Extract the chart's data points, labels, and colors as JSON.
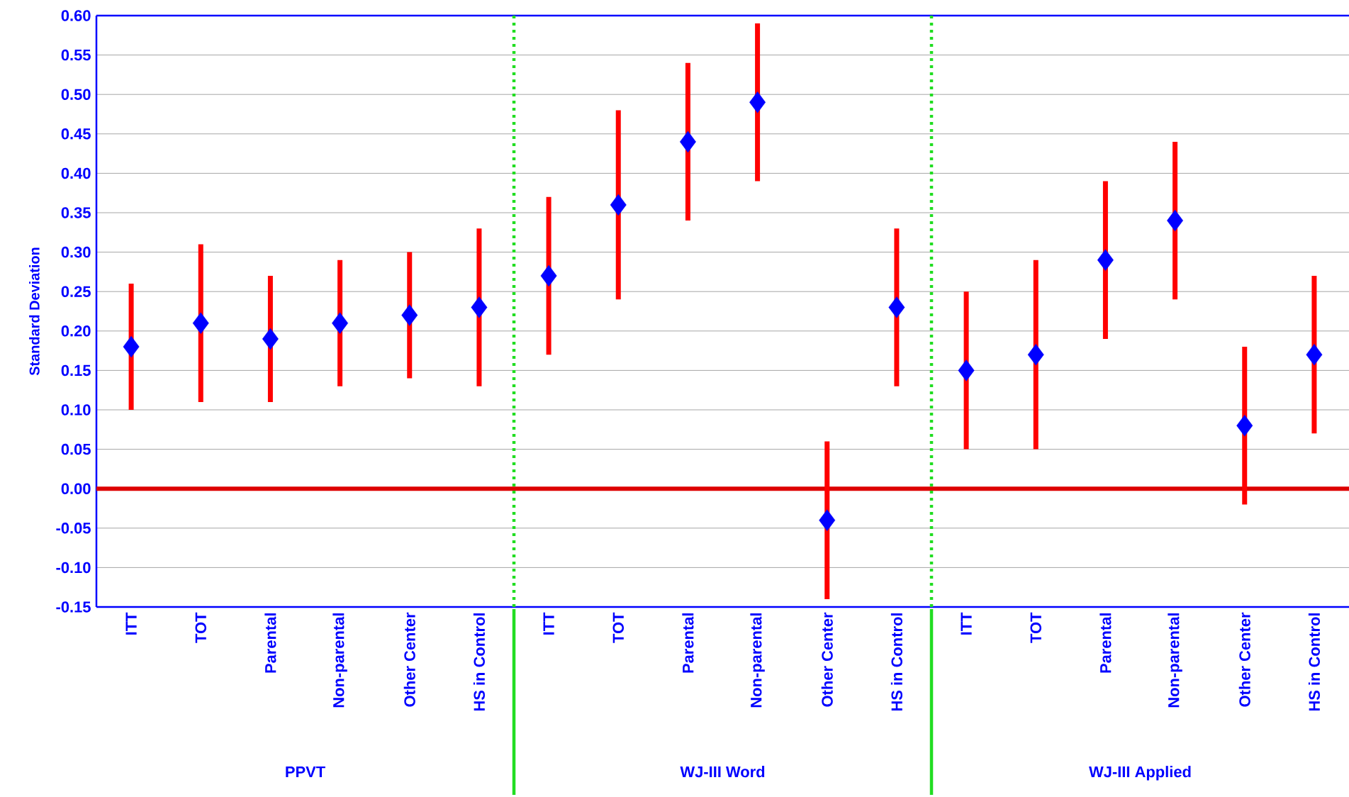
{
  "chart_data": {
    "type": "scatter",
    "ylabel": "Standard Deviation",
    "categories": [
      "ITT",
      "TOT",
      "Parental",
      "Non-parental",
      "Other Center",
      "HS in Control",
      "ITT",
      "TOT",
      "Parental",
      "Non-parental",
      "Other Center",
      "HS in Control",
      "ITT",
      "TOT",
      "Parental",
      "Non-parental",
      "Other Center",
      "HS in Control"
    ],
    "series": [
      {
        "color": "#0000ff",
        "values": [
          0.18,
          0.21,
          0.19,
          0.21,
          0.22,
          0.23,
          0.27,
          0.36,
          0.44,
          0.49,
          -0.04,
          0.23,
          0.15,
          0.17,
          0.29,
          0.34,
          0.08,
          0.17
        ],
        "errors": [
          [
            0.1,
            0.26
          ],
          [
            0.11,
            0.31
          ],
          [
            0.11,
            0.27
          ],
          [
            0.13,
            0.29
          ],
          [
            0.14,
            0.3
          ],
          [
            0.13,
            0.33
          ],
          [
            0.17,
            0.37
          ],
          [
            0.24,
            0.48
          ],
          [
            0.34,
            0.54
          ],
          [
            0.39,
            0.59
          ],
          [
            -0.14,
            0.06
          ],
          [
            0.13,
            0.33
          ],
          [
            0.05,
            0.25
          ],
          [
            0.05,
            0.29
          ],
          [
            0.19,
            0.39
          ],
          [
            0.24,
            0.44
          ],
          [
            -0.02,
            0.18
          ],
          [
            0.07,
            0.27
          ]
        ]
      }
    ],
    "marker": "diamond",
    "ylim": [
      -0.15,
      0.6
    ],
    "yticks": [
      {
        "value": -0.15,
        "label": "-0.15"
      },
      {
        "value": -0.1,
        "label": "-0.10"
      },
      {
        "value": -0.05,
        "label": "-0.05"
      },
      {
        "value": 0,
        "label": "0.00"
      },
      {
        "value": 0.05,
        "label": "0.05"
      },
      {
        "value": 0.1,
        "label": "0.10"
      },
      {
        "value": 0.15,
        "label": "0.15"
      },
      {
        "value": 0.2,
        "label": "0.20"
      },
      {
        "value": 0.25,
        "label": "0.25"
      },
      {
        "value": 0.3,
        "label": "0.30"
      },
      {
        "value": 0.35,
        "label": "0.35"
      },
      {
        "value": 0.4,
        "label": "0.40"
      },
      {
        "value": 0.45,
        "label": "0.45"
      },
      {
        "value": 0.5,
        "label": "0.50"
      },
      {
        "value": 0.55,
        "label": "0.55"
      },
      {
        "value": 0.6,
        "label": "0.60"
      }
    ],
    "grid": "y",
    "ref_lines": [
      {
        "axis": "y",
        "value": 0,
        "color": "#dd0000",
        "line_style": "solid"
      }
    ],
    "annotations": [
      "PPVT",
      "WJ-III Word",
      "WJ-III Applied"
    ]
  }
}
